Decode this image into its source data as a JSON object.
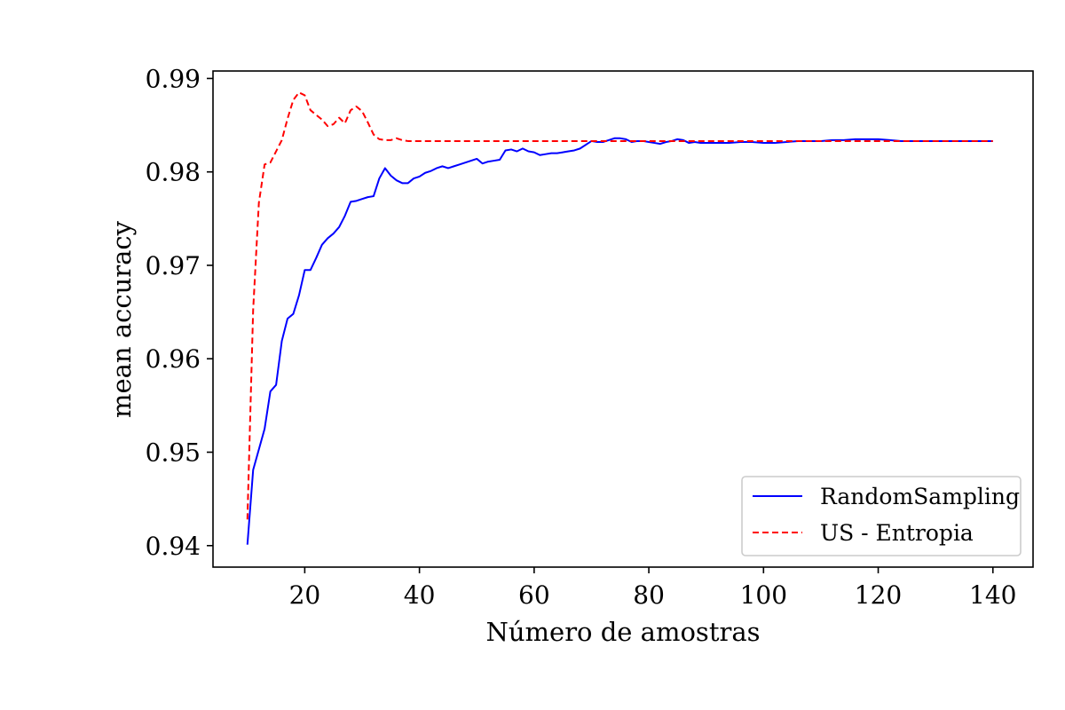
{
  "chart_data": {
    "type": "line",
    "title": "",
    "xlabel": "Número de amostras",
    "ylabel": "mean accuracy",
    "xlim": [
      4,
      147
    ],
    "ylim": [
      0.9377,
      0.9908
    ],
    "xticks": [
      20,
      40,
      60,
      80,
      100,
      120,
      140
    ],
    "yticks": [
      0.94,
      0.95,
      0.96,
      0.97,
      0.98,
      0.99
    ],
    "xtick_labels": [
      "20",
      "40",
      "60",
      "80",
      "100",
      "120",
      "140"
    ],
    "ytick_labels": [
      "0.94",
      "0.95",
      "0.96",
      "0.97",
      "0.98",
      "0.99"
    ],
    "grid": false,
    "legend_position": "lower-right",
    "legend": [
      "RandomSampling",
      "US - Entropia"
    ],
    "series": [
      {
        "name": "RandomSampling",
        "color": "#0000ff",
        "style": "solid",
        "x": [
          10,
          11,
          12,
          13,
          14,
          15,
          16,
          17,
          18,
          19,
          20,
          21,
          22,
          23,
          24,
          25,
          26,
          27,
          28,
          29,
          30,
          31,
          32,
          33,
          34,
          35,
          36,
          37,
          38,
          39,
          40,
          41,
          42,
          43,
          44,
          45,
          46,
          47,
          48,
          49,
          50,
          51,
          52,
          53,
          54,
          55,
          56,
          57,
          58,
          59,
          60,
          61,
          62,
          63,
          64,
          65,
          66,
          67,
          68,
          69,
          70,
          71,
          72,
          73,
          74,
          75,
          76,
          77,
          78,
          79,
          80,
          81,
          82,
          83,
          84,
          85,
          86,
          87,
          88,
          89,
          90,
          92,
          94,
          96,
          98,
          100,
          102,
          104,
          106,
          108,
          110,
          112,
          114,
          116,
          118,
          120,
          122,
          124,
          126,
          128,
          130,
          132,
          134,
          136,
          138,
          140
        ],
        "values": [
          0.9401,
          0.9481,
          0.9503,
          0.9525,
          0.9565,
          0.9572,
          0.9619,
          0.9643,
          0.9648,
          0.9668,
          0.9695,
          0.9695,
          0.9708,
          0.9722,
          0.9729,
          0.9734,
          0.9741,
          0.9753,
          0.9768,
          0.9769,
          0.9771,
          0.9773,
          0.9774,
          0.9793,
          0.9804,
          0.9796,
          0.9791,
          0.9788,
          0.9788,
          0.9793,
          0.9795,
          0.9799,
          0.9801,
          0.9804,
          0.9806,
          0.9804,
          0.9806,
          0.9808,
          0.981,
          0.9812,
          0.9814,
          0.9809,
          0.9811,
          0.9812,
          0.9813,
          0.9823,
          0.9824,
          0.9822,
          0.9825,
          0.9822,
          0.9821,
          0.9818,
          0.9819,
          0.982,
          0.982,
          0.9821,
          0.9822,
          0.9823,
          0.9825,
          0.9829,
          0.9833,
          0.9832,
          0.9832,
          0.9834,
          0.9836,
          0.9836,
          0.9835,
          0.9832,
          0.9833,
          0.9833,
          0.9832,
          0.9831,
          0.983,
          0.9832,
          0.9833,
          0.9835,
          0.9834,
          0.9831,
          0.9832,
          0.9831,
          0.9831,
          0.9831,
          0.9831,
          0.9832,
          0.9832,
          0.9831,
          0.9831,
          0.9832,
          0.9833,
          0.9833,
          0.9833,
          0.9834,
          0.9834,
          0.9835,
          0.9835,
          0.9835,
          0.9834,
          0.9833,
          0.9833,
          0.9833,
          0.9833,
          0.9833,
          0.9833,
          0.9833,
          0.9833,
          0.9833
        ]
      },
      {
        "name": "US - Entropia",
        "color": "#ff0000",
        "style": "dashed",
        "x": [
          10,
          11,
          12,
          13,
          14,
          15,
          16,
          17,
          18,
          19,
          20,
          21,
          22,
          23,
          24,
          25,
          26,
          27,
          28,
          29,
          30,
          31,
          32,
          33,
          34,
          35,
          36,
          37,
          38,
          40,
          45,
          50,
          60,
          70,
          80,
          90,
          100,
          110,
          120,
          130,
          140
        ],
        "values": [
          0.9428,
          0.9652,
          0.9767,
          0.9808,
          0.981,
          0.9822,
          0.9834,
          0.9857,
          0.9877,
          0.9885,
          0.9882,
          0.9866,
          0.9861,
          0.9856,
          0.9849,
          0.9851,
          0.9858,
          0.9852,
          0.9866,
          0.987,
          0.9865,
          0.9853,
          0.984,
          0.9835,
          0.9834,
          0.9834,
          0.9836,
          0.9834,
          0.9833,
          0.9833,
          0.9833,
          0.9833,
          0.9833,
          0.9833,
          0.9833,
          0.9833,
          0.9833,
          0.9833,
          0.9833,
          0.9833,
          0.9833
        ]
      }
    ]
  }
}
